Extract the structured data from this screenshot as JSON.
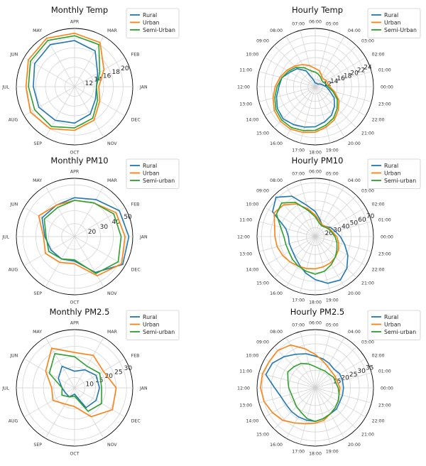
{
  "chart_data": [
    {
      "type": "polar-line",
      "title": "Monthly Temp",
      "theta_labels": [
        "JAN",
        "FEB",
        "MAR",
        "APR",
        "MAY",
        "JUN",
        "JUL",
        "AUG",
        "SEP",
        "OCT",
        "NOV",
        "DEC"
      ],
      "r_ticks": [
        12,
        14,
        16,
        18,
        20
      ],
      "r_range": [
        10,
        22
      ],
      "legend": [
        "Rural",
        "Urban",
        "Semi-Urban"
      ],
      "grid": true,
      "series": [
        {
          "name": "Rural",
          "color": "#1f77b4",
          "values": [
            14.5,
            15.5,
            18.5,
            19.5,
            20,
            19.5,
            18.5,
            18.5,
            18,
            17.5,
            16.5,
            15
          ]
        },
        {
          "name": "Urban",
          "color": "#ff7f0e",
          "values": [
            15,
            17,
            20.5,
            21,
            21.5,
            21,
            20,
            20.5,
            20,
            19,
            18,
            16
          ]
        },
        {
          "name": "Semi-Urban",
          "color": "#2ca02c",
          "values": [
            14.5,
            16,
            20,
            20.5,
            21,
            20.5,
            19.5,
            19.5,
            19.5,
            18.5,
            17.5,
            15.5
          ]
        }
      ]
    },
    {
      "type": "polar-line",
      "title": "Hourly Temp",
      "theta_labels": [
        "00:00",
        "01:00",
        "02:00",
        "03:00",
        "04:00",
        "05:00",
        "06:00",
        "07:00",
        "08:00",
        "09:00",
        "10:00",
        "11:00",
        "12:00",
        "13:00",
        "14:00",
        "15:00",
        "16:00",
        "17:00",
        "18:00",
        "19:00",
        "20:00",
        "21:00",
        "22:00",
        "23:00"
      ],
      "r_ticks": [
        12,
        14,
        16,
        18,
        20,
        22,
        24
      ],
      "r_range": [
        10,
        26
      ],
      "legend": [
        "Rural",
        "Urban",
        "Semi-Urban"
      ],
      "grid": true,
      "series": [
        {
          "name": "Rural",
          "color": "#1f77b4",
          "values": [
            13,
            12,
            11.5,
            11,
            11,
            11,
            11,
            12,
            15,
            17,
            18,
            19.5,
            20,
            21,
            22,
            22.5,
            22,
            21.5,
            21,
            20,
            19,
            17.5,
            16,
            14
          ]
        },
        {
          "name": "Urban",
          "color": "#ff7f0e",
          "values": [
            14,
            13.5,
            13.5,
            13,
            13.5,
            14.5,
            15,
            16,
            17,
            18,
            19,
            20,
            21,
            22,
            23,
            23.5,
            23.5,
            23,
            22.5,
            21.5,
            20.5,
            19,
            17.5,
            15.5
          ]
        },
        {
          "name": "Semi-Urban",
          "color": "#2ca02c",
          "values": [
            13.5,
            13,
            12.5,
            12.5,
            13,
            13.5,
            14,
            14.5,
            16,
            17.5,
            18.5,
            19.5,
            20.5,
            21.5,
            22.5,
            23,
            23,
            22.5,
            22,
            21,
            20,
            18.5,
            17,
            15
          ]
        }
      ]
    },
    {
      "type": "polar-line",
      "title": "Monthly PM10",
      "theta_labels": [
        "JAN",
        "FEB",
        "MAR",
        "APR",
        "MAY",
        "JUN",
        "JUL",
        "AUG",
        "SEP",
        "OCT",
        "NOV",
        "DEC"
      ],
      "r_ticks": [
        20,
        30,
        40,
        50
      ],
      "r_range": [
        10,
        55
      ],
      "legend": [
        "Rural",
        "Urban",
        "Semi-urban"
      ],
      "grid": true,
      "series": [
        {
          "name": "Rural",
          "color": "#1f77b4",
          "values": [
            52,
            50,
            43,
            40,
            38,
            39,
            33,
            31,
            30,
            29,
            42,
            53
          ]
        },
        {
          "name": "Urban",
          "color": "#ff7f0e",
          "values": [
            49,
            47,
            40,
            38,
            38,
            42,
            34,
            36,
            33,
            31,
            45,
            52
          ]
        },
        {
          "name": "Semi-urban",
          "color": "#2ca02c",
          "values": [
            46,
            45,
            40,
            38,
            36,
            37,
            32,
            33,
            30,
            28,
            43,
            49
          ]
        }
      ]
    },
    {
      "type": "polar-line",
      "title": "Hourly PM10",
      "theta_labels": [
        "00:00",
        "01:00",
        "02:00",
        "03:00",
        "04:00",
        "05:00",
        "06:00",
        "07:00",
        "08:00",
        "09:00",
        "10:00",
        "11:00",
        "12:00",
        "13:00",
        "14:00",
        "15:00",
        "16:00",
        "17:00",
        "18:00",
        "19:00",
        "20:00",
        "21:00",
        "22:00",
        "23:00"
      ],
      "r_ticks": [
        20,
        30,
        40,
        50,
        60,
        70
      ],
      "r_range": [
        10,
        75
      ],
      "legend": [
        "Rural",
        "Urban",
        "Semi-urban"
      ],
      "grid": true,
      "series": [
        {
          "name": "Rural",
          "color": "#1f77b4",
          "values": [
            38,
            33,
            30,
            26,
            25,
            30,
            38,
            46,
            62,
            72,
            65,
            44,
            40,
            40,
            40,
            42,
            46,
            52,
            58,
            64,
            66,
            60,
            52,
            44
          ]
        },
        {
          "name": "Urban",
          "color": "#ff7f0e",
          "values": [
            34,
            30,
            28,
            26,
            25,
            28,
            34,
            42,
            52,
            60,
            63,
            57,
            55,
            54,
            52,
            50,
            48,
            47,
            46,
            45,
            44,
            42,
            40,
            37
          ]
        },
        {
          "name": "Semi-urban",
          "color": "#2ca02c",
          "values": [
            32,
            29,
            27,
            25,
            24,
            26,
            32,
            40,
            54,
            63,
            60,
            50,
            45,
            44,
            44,
            46,
            48,
            50,
            52,
            50,
            46,
            42,
            38,
            35
          ]
        }
      ]
    },
    {
      "type": "polar-line",
      "title": "Monthly PM2.5",
      "theta_labels": [
        "JAN",
        "FEB",
        "MAR",
        "APR",
        "MAY",
        "JUN",
        "JUL",
        "AUG",
        "SEP",
        "OCT",
        "NOV",
        "DEC"
      ],
      "r_ticks": [
        10,
        15,
        20,
        25,
        30
      ],
      "r_range": [
        5,
        33
      ],
      "legend": [
        "Rural",
        "Urban",
        "Semi-urban"
      ],
      "grid": true,
      "series": [
        {
          "name": "Rural",
          "color": "#1f77b4",
          "values": [
            17,
            17,
            15,
            13,
            17,
            14,
            11,
            10,
            10,
            8,
            16,
            17
          ]
        },
        {
          "name": "Urban",
          "color": "#ff7f0e",
          "values": [
            25,
            21,
            23,
            22,
            27,
            21,
            16,
            17,
            14,
            14,
            21,
            26
          ]
        },
        {
          "name": "Semi-urban",
          "color": "#2ca02c",
          "values": [
            18,
            19,
            17,
            20,
            24,
            19,
            11,
            12,
            10,
            9,
            18,
            20
          ]
        }
      ]
    },
    {
      "type": "polar-line",
      "title": "Hourly PM2.5",
      "theta_labels": [
        "00:00",
        "01:00",
        "02:00",
        "03:00",
        "04:00",
        "05:00",
        "06:00",
        "07:00",
        "08:00",
        "09:00",
        "10:00",
        "11:00",
        "12:00",
        "13:00",
        "14:00",
        "15:00",
        "16:00",
        "17:00",
        "18:00",
        "19:00",
        "20:00",
        "21:00",
        "22:00",
        "23:00"
      ],
      "r_ticks": [
        15,
        20,
        25,
        30,
        35
      ],
      "r_range": [
        5,
        38
      ],
      "legend": [
        "Rural",
        "Urban",
        "Semi-urban"
      ],
      "grid": true,
      "series": [
        {
          "name": "Rural",
          "color": "#1f77b4",
          "values": [
            21,
            21,
            21,
            20,
            21,
            22,
            23,
            25,
            27,
            30,
            33,
            34,
            28,
            25,
            24,
            24,
            24,
            24,
            24,
            23,
            22,
            22,
            21,
            21
          ]
        },
        {
          "name": "Urban",
          "color": "#ff7f0e",
          "values": [
            19,
            18,
            18,
            18,
            19,
            21,
            24,
            28,
            33,
            35,
            35,
            36,
            36,
            35,
            33,
            31,
            28,
            26,
            25,
            24,
            22,
            21,
            20,
            19
          ]
        },
        {
          "name": "Semi-urban",
          "color": "#2ca02c",
          "values": [
            18,
            17,
            17,
            16,
            16,
            16,
            17,
            19,
            21,
            22,
            23,
            21,
            20,
            19,
            19,
            20,
            21,
            23,
            24,
            23,
            22,
            21,
            20,
            19
          ]
        }
      ]
    }
  ]
}
